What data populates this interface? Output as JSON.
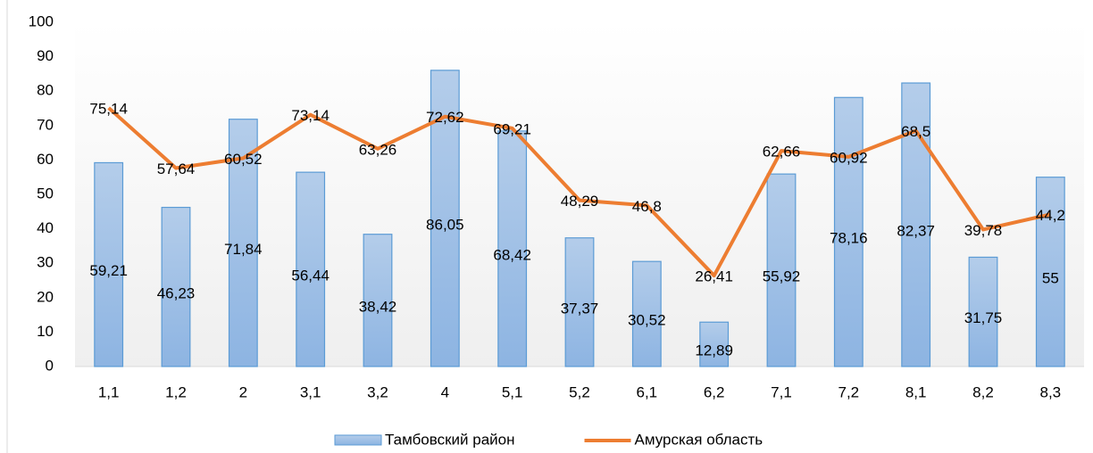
{
  "chart_data": {
    "type": "bar",
    "categories": [
      "1,1",
      "1,2",
      "2",
      "3,1",
      "3,2",
      "4",
      "5,1",
      "5,2",
      "6,1",
      "6,2",
      "7,1",
      "7,2",
      "8,1",
      "8,2",
      "8,3"
    ],
    "series": [
      {
        "name": "Тамбовский район",
        "type": "bar",
        "color": "#5b9bd5",
        "values": [
          59.21,
          46.23,
          71.84,
          56.44,
          38.42,
          86.05,
          68.42,
          37.37,
          30.52,
          12.89,
          55.92,
          78.16,
          82.37,
          31.75,
          55
        ],
        "value_labels": [
          "59,21",
          "46,23",
          "71,84",
          "56,44",
          "38,42",
          "86,05",
          "68,42",
          "37,37",
          "30,52",
          "12,89",
          "55,92",
          "78,16",
          "82,37",
          "31,75",
          "55"
        ]
      },
      {
        "name": "Амурская область",
        "type": "line",
        "color": "#ed7d31",
        "values": [
          75.14,
          57.64,
          60.52,
          73.14,
          63.26,
          72.62,
          69.21,
          48.29,
          46.8,
          26.41,
          62.66,
          60.92,
          68.5,
          39.78,
          44.2
        ],
        "value_labels": [
          "75,14",
          "57,64",
          "60,52",
          "73,14",
          "63,26",
          "72,62",
          "69,21",
          "48,29",
          "46,8",
          "26,41",
          "62,66",
          "60,92",
          "68,5",
          "39,78",
          "44,2"
        ]
      }
    ],
    "ylim": [
      0,
      100
    ],
    "yticks": [
      0,
      10,
      20,
      30,
      40,
      50,
      60,
      70,
      80,
      90,
      100
    ],
    "grid": false,
    "legend": "bottom"
  }
}
